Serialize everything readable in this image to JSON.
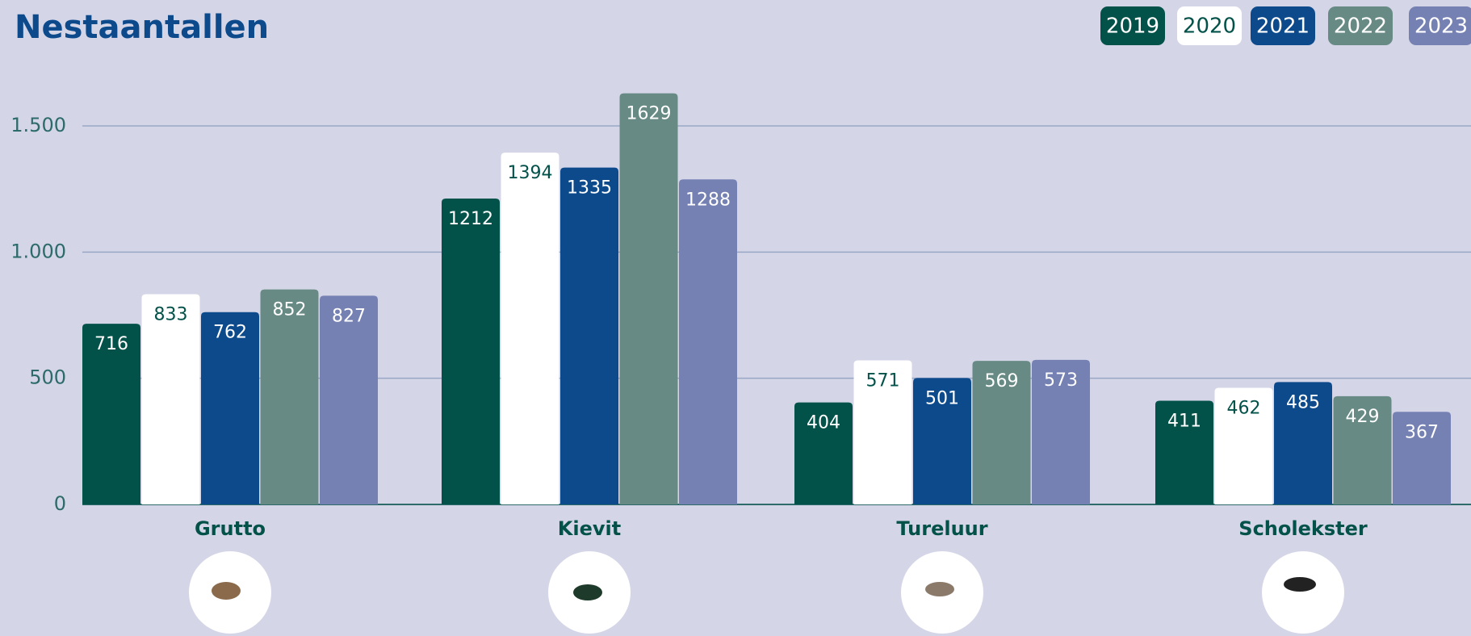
{
  "chart_data": {
    "type": "bar",
    "title": "Nestaantallen",
    "categories": [
      "Grutto",
      "Kievit",
      "Tureluur",
      "Scholekster"
    ],
    "series": [
      {
        "name": "2019",
        "color": "#03524a",
        "values": [
          716,
          1212,
          404,
          411
        ]
      },
      {
        "name": "2020",
        "color": "#ffffff",
        "values": [
          833,
          1394,
          571,
          462
        ]
      },
      {
        "name": "2021",
        "color": "#0c4a8c",
        "values": [
          762,
          1335,
          501,
          485
        ]
      },
      {
        "name": "2022",
        "color": "#678a84",
        "values": [
          852,
          1629,
          569,
          429
        ]
      },
      {
        "name": "2023",
        "color": "#7580b3",
        "values": [
          827,
          1288,
          573,
          367
        ]
      }
    ],
    "ylim": [
      0,
      1700
    ],
    "yticks": [
      0,
      500,
      {
        "value": 1000,
        "label": "1.000"
      },
      {
        "value": 1500,
        "label": "1.500"
      }
    ],
    "grid": true,
    "legend": "top-right"
  }
}
